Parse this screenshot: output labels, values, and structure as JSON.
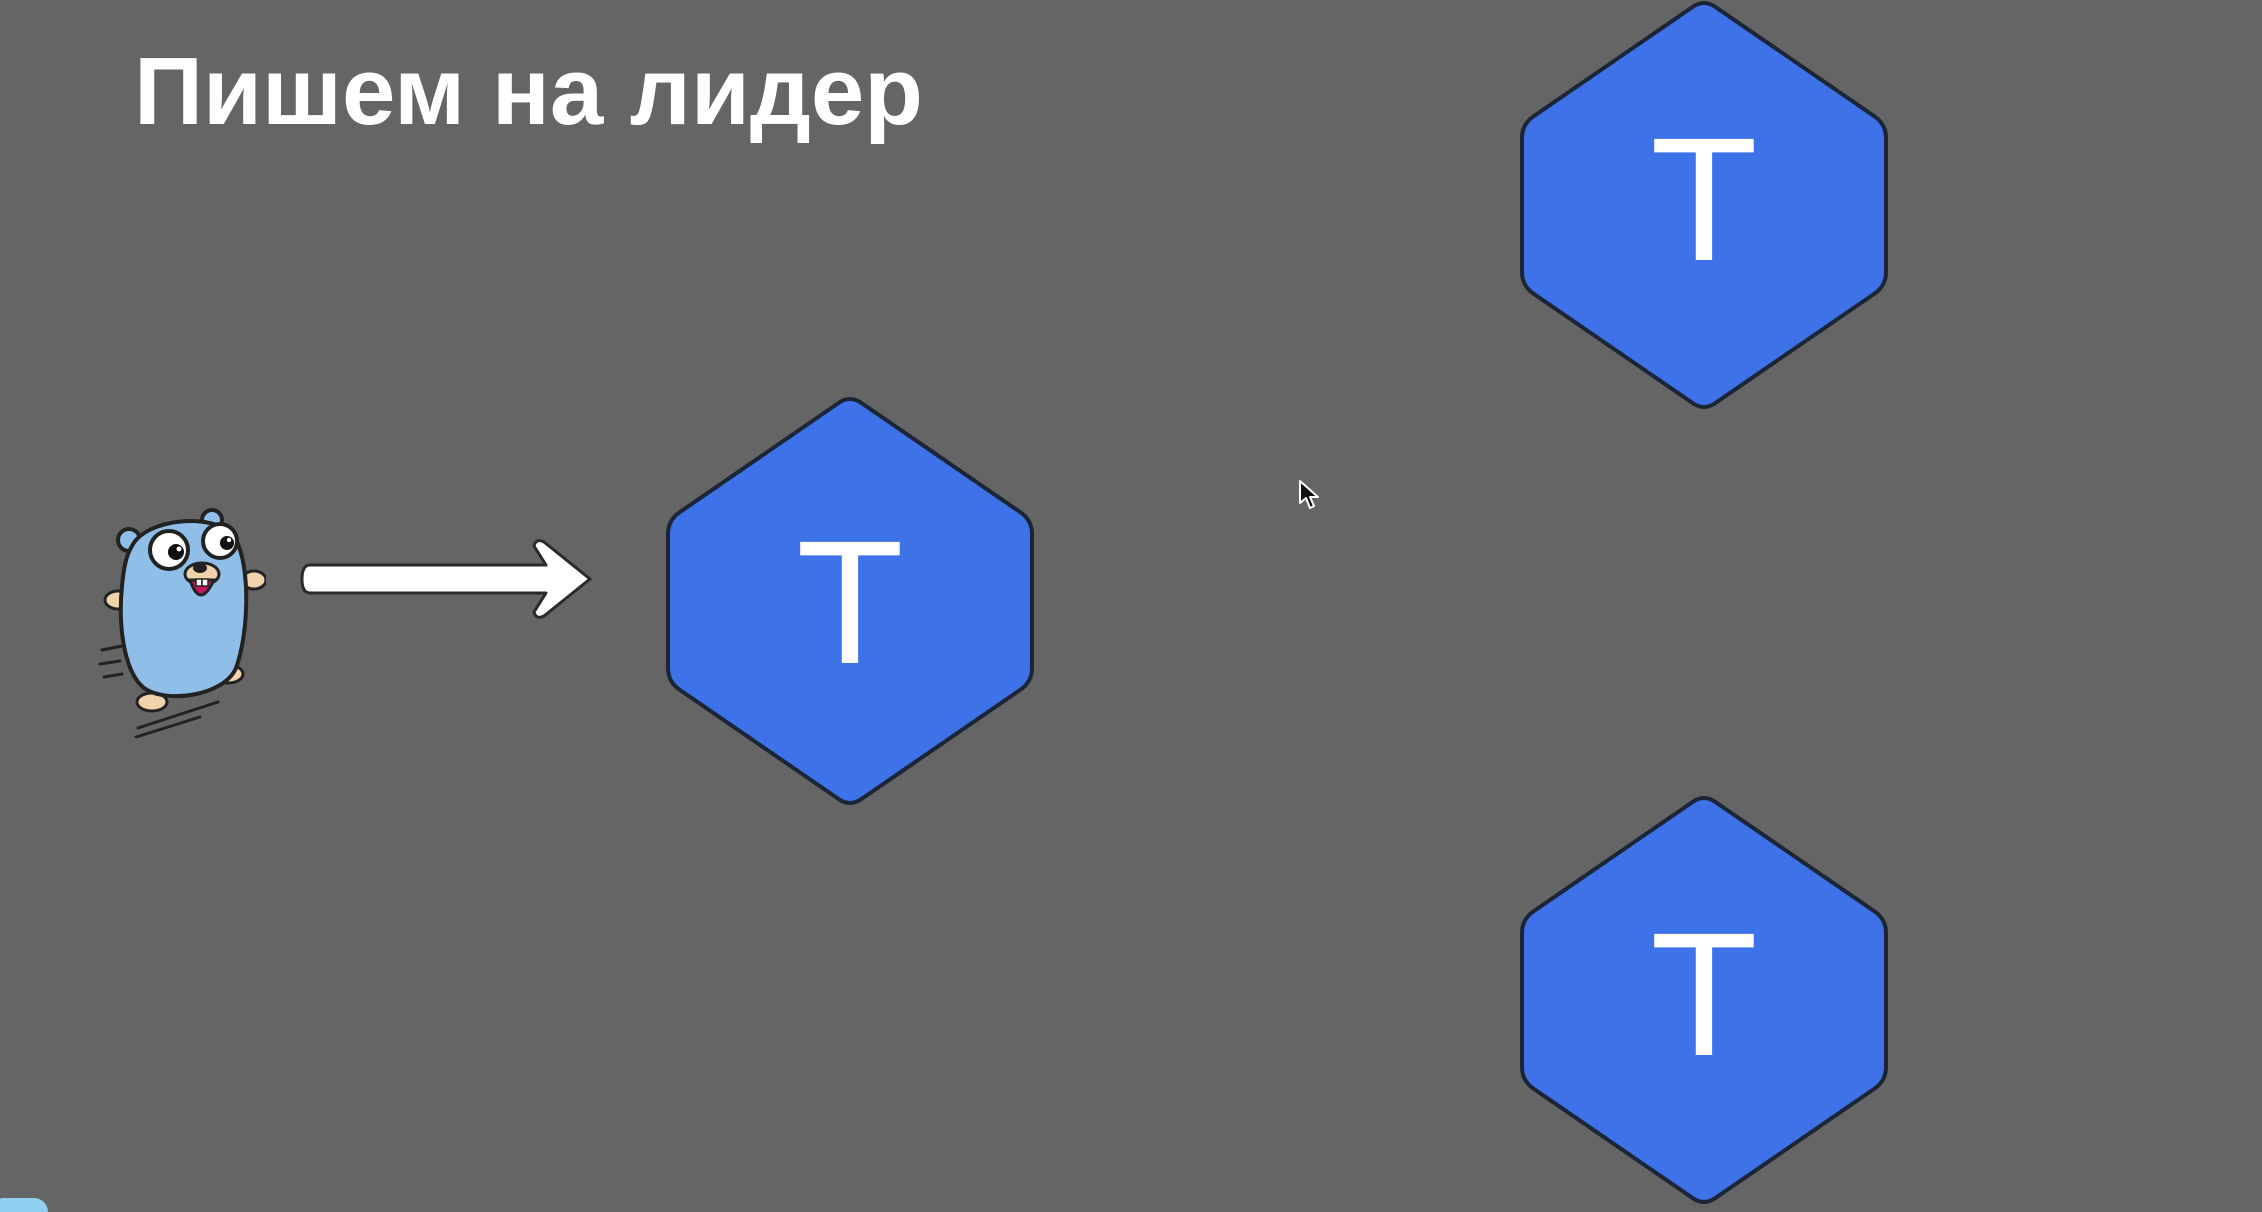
{
  "slide": {
    "title": "Пишем на лидер"
  },
  "nodes": [
    {
      "id": "leader",
      "label": "T"
    },
    {
      "id": "follower-top",
      "label": "T"
    },
    {
      "id": "follower-bottom",
      "label": "T"
    }
  ],
  "colors": {
    "background": "#656565",
    "node_fill": "#3e72e9",
    "node_stroke": "#1b2536",
    "text": "#ffffff",
    "gopher_body": "#8fbfe8"
  },
  "icons": {
    "client": "go-gopher-icon",
    "request": "arrow-right-icon",
    "pointer": "mouse-cursor-icon"
  }
}
